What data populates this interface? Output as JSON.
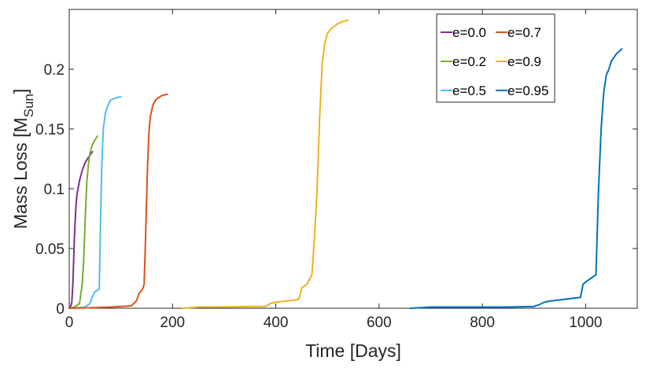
{
  "chart_data": {
    "type": "line",
    "xlabel": "Time [Days]",
    "ylabel": "Mass Loss [M",
    "ylabel_sub": "Sun",
    "ylabel_end": "]",
    "xlim": [
      0,
      1100
    ],
    "ylim": [
      0,
      0.25
    ],
    "xticks": [
      0,
      200,
      400,
      600,
      800,
      1000
    ],
    "yticks": [
      0,
      0.05,
      0.1,
      0.15,
      0.2
    ],
    "xtick_labels": [
      "0",
      "200",
      "400",
      "600",
      "800",
      "1000"
    ],
    "ytick_labels": [
      "0",
      "0.05",
      "0.1",
      "0.15",
      "0.2"
    ],
    "grid": false,
    "legend_position": "top-right",
    "series": [
      {
        "name": "e=0.0",
        "color": "#7E2F8E",
        "x": [
          0,
          3,
          5,
          7,
          10,
          13,
          15,
          20,
          25,
          30,
          35,
          40,
          45
        ],
        "y": [
          0,
          0.002,
          0.005,
          0.02,
          0.06,
          0.085,
          0.095,
          0.107,
          0.115,
          0.121,
          0.125,
          0.128,
          0.131
        ]
      },
      {
        "name": "e=0.2",
        "color": "#77AC30",
        "x": [
          0,
          10,
          20,
          25,
          28,
          31,
          34,
          37,
          40,
          45,
          50,
          55
        ],
        "y": [
          0,
          0.001,
          0.004,
          0.02,
          0.04,
          0.075,
          0.105,
          0.12,
          0.13,
          0.137,
          0.141,
          0.144
        ]
      },
      {
        "name": "e=0.5",
        "color": "#4DBEEE",
        "x": [
          0,
          20,
          30,
          40,
          45,
          50,
          55,
          58,
          60,
          63,
          66,
          70,
          75,
          80,
          90,
          100
        ],
        "y": [
          0,
          0.0005,
          0.001,
          0.004,
          0.01,
          0.014,
          0.015,
          0.016,
          0.06,
          0.12,
          0.15,
          0.163,
          0.17,
          0.174,
          0.176,
          0.177
        ]
      },
      {
        "name": "e=0.7",
        "color": "#D95319",
        "x": [
          0,
          50,
          80,
          100,
          120,
          130,
          135,
          140,
          143,
          145,
          148,
          151,
          154,
          157,
          162,
          167,
          172,
          180,
          190
        ],
        "y": [
          0,
          0.0005,
          0.001,
          0.0015,
          0.002,
          0.006,
          0.012,
          0.015,
          0.017,
          0.02,
          0.06,
          0.11,
          0.145,
          0.16,
          0.17,
          0.174,
          0.176,
          0.178,
          0.179
        ]
      },
      {
        "name": "e=0.9",
        "color": "#EDB120",
        "x": [
          220,
          250,
          300,
          350,
          380,
          390,
          400,
          420,
          440,
          445,
          450,
          460,
          470,
          475,
          480,
          485,
          490,
          495,
          500,
          510,
          520,
          530,
          540
        ],
        "y": [
          0,
          0.001,
          0.001,
          0.0015,
          0.0015,
          0.004,
          0.005,
          0.006,
          0.007,
          0.008,
          0.017,
          0.02,
          0.028,
          0.06,
          0.1,
          0.16,
          0.205,
          0.222,
          0.23,
          0.235,
          0.238,
          0.24,
          0.241
        ]
      },
      {
        "name": "e=0.95",
        "color": "#0072BD",
        "x": [
          660,
          680,
          700,
          750,
          800,
          850,
          900,
          910,
          920,
          930,
          950,
          970,
          990,
          995,
          1000,
          1010,
          1020,
          1025,
          1030,
          1035,
          1040,
          1045,
          1050,
          1060,
          1070
        ],
        "y": [
          0,
          0.0005,
          0.001,
          0.001,
          0.001,
          0.001,
          0.0015,
          0.003,
          0.005,
          0.006,
          0.007,
          0.008,
          0.009,
          0.02,
          0.022,
          0.025,
          0.028,
          0.1,
          0.15,
          0.18,
          0.195,
          0.2,
          0.207,
          0.213,
          0.217
        ]
      }
    ]
  }
}
